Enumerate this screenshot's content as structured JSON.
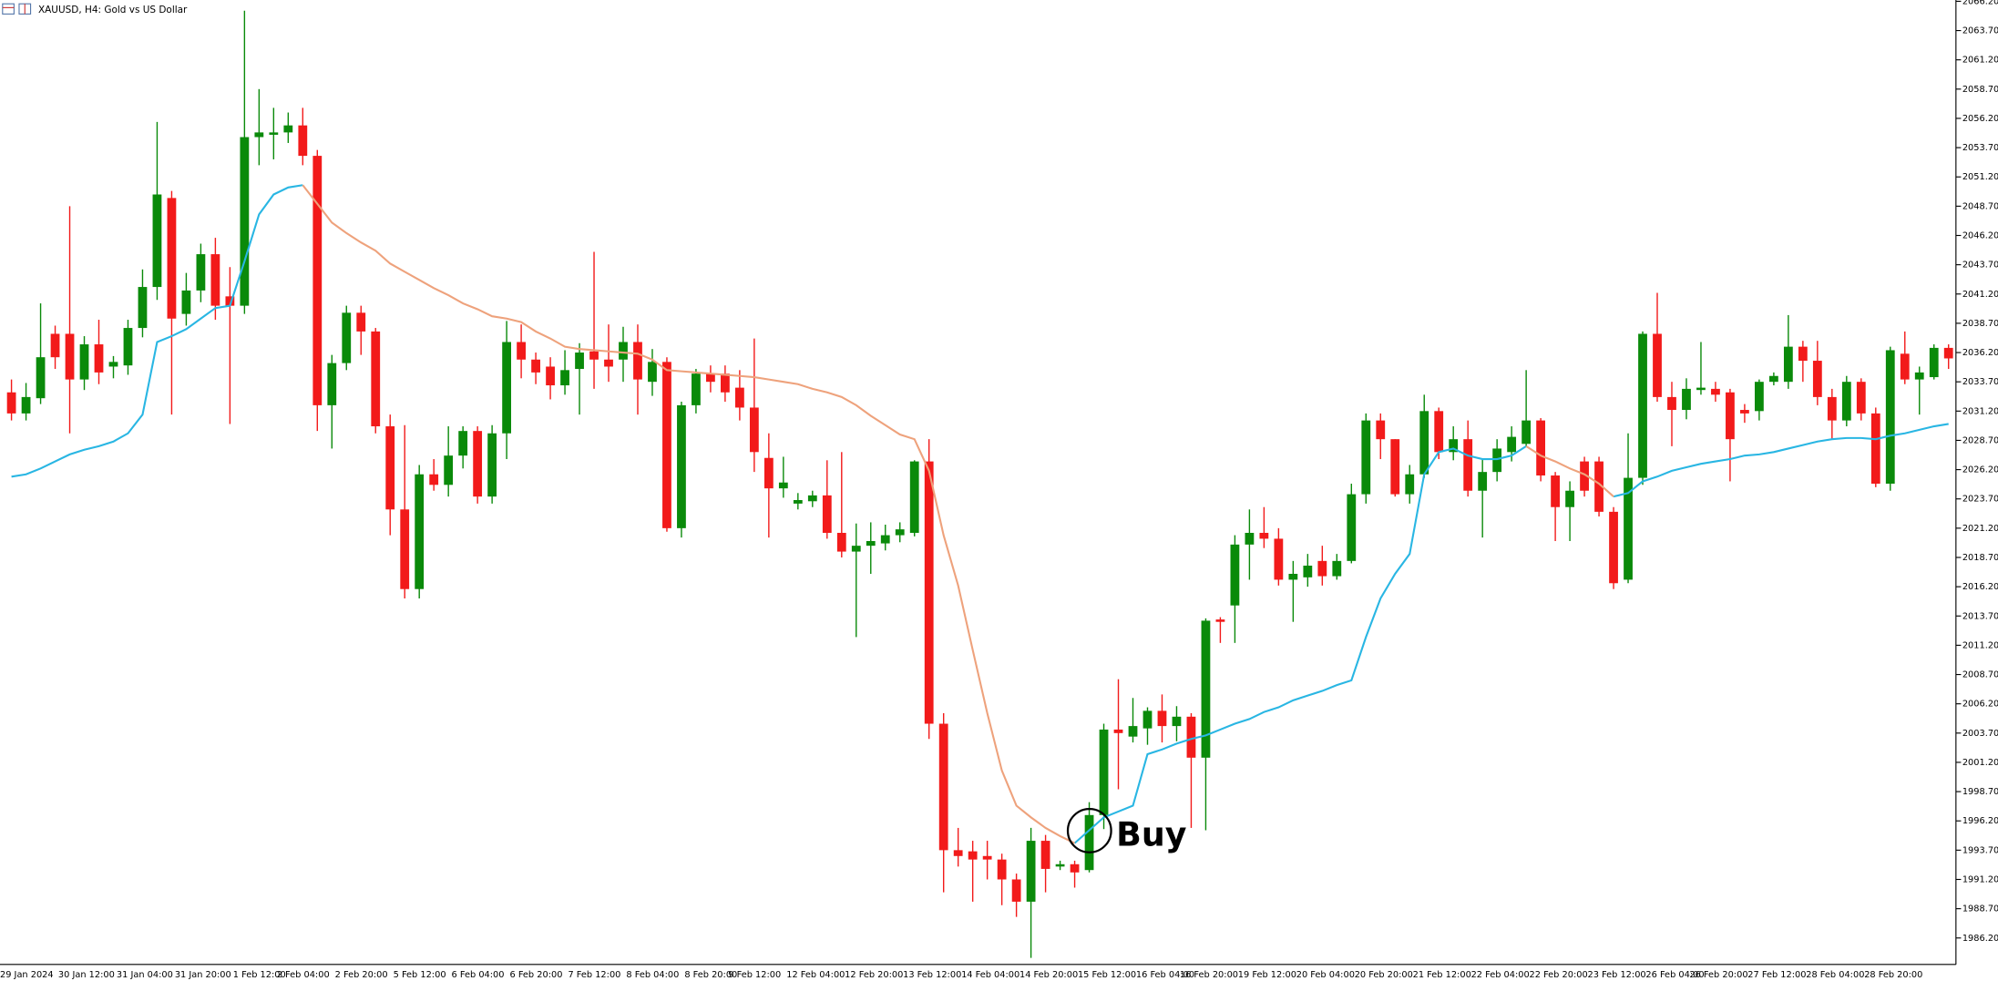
{
  "chart_data": {
    "type": "candlestick",
    "title": "XAUUSD, H4:  Gold vs US Dollar",
    "annotation": "Buy",
    "up_color": "#0a8a0a",
    "down_color": "#f21a1a",
    "categories": [
      "29 Jan 2024",
      null,
      null,
      null,
      "30 Jan 12:00",
      null,
      null,
      null,
      "31 Jan 04:00",
      null,
      null,
      null,
      "31 Jan 20:00",
      null,
      null,
      null,
      "1 Feb 12:00",
      null,
      null,
      "2 Feb 04:00",
      null,
      null,
      null,
      "2 Feb 20:00",
      null,
      null,
      null,
      "5 Feb 12:00",
      null,
      null,
      null,
      "6 Feb 04:00",
      null,
      null,
      null,
      "6 Feb 20:00",
      null,
      null,
      null,
      "7 Feb 12:00",
      null,
      null,
      null,
      "8 Feb 04:00",
      null,
      null,
      null,
      "8 Feb 20:00",
      null,
      null,
      "9 Feb 12:00",
      null,
      null,
      null,
      "12 Feb 04:00",
      null,
      null,
      null,
      "12 Feb 20:00",
      null,
      null,
      null,
      "13 Feb 12:00",
      null,
      null,
      null,
      "14 Feb 04:00",
      null,
      null,
      null,
      "14 Feb 20:00",
      null,
      null,
      null,
      "15 Feb 12:00",
      null,
      null,
      null,
      "16 Feb 04:00",
      null,
      null,
      "16 Feb 20:00",
      null,
      null,
      null,
      "19 Feb 12:00",
      null,
      null,
      null,
      "20 Feb 04:00",
      null,
      null,
      null,
      "20 Feb 20:00",
      null,
      null,
      null,
      "21 Feb 12:00",
      null,
      null,
      null,
      "22 Feb 04:00",
      null,
      null,
      null,
      "22 Feb 20:00",
      null,
      null,
      null,
      "23 Feb 12:00",
      null,
      null,
      null,
      "26 Feb 04:00",
      null,
      null,
      "26 Feb 20:00",
      null,
      null,
      null,
      "27 Feb 12:00",
      null,
      null,
      null,
      "28 Feb 04:00",
      null,
      null,
      null,
      "28 Feb 20:00",
      null,
      null,
      null,
      null,
      null
    ],
    "open": [
      2032.8,
      2031.0,
      2032.3,
      2037.8,
      2037.8,
      2033.9,
      2036.9,
      2035.0,
      2035.1,
      2038.3,
      2041.8,
      2049.4,
      2039.5,
      2041.5,
      2044.6,
      2041.0,
      2040.2,
      2054.6,
      2054.8,
      2055.0,
      2055.6,
      2053.0,
      2031.7,
      2035.3,
      2039.6,
      2038.0,
      2029.9,
      2022.8,
      2016.0,
      2025.8,
      2024.9,
      2027.4,
      2029.5,
      2023.9,
      2029.3,
      2037.1,
      2035.6,
      2035.0,
      2033.4,
      2034.8,
      2036.3,
      2035.6,
      2035.6,
      2037.1,
      2033.7,
      2035.4,
      2021.2,
      2031.7,
      2034.4,
      2034.4,
      2033.2,
      2031.5,
      2027.2,
      2024.6,
      2023.3,
      2023.5,
      2024.0,
      2020.8,
      2019.2,
      2019.7,
      2019.9,
      2020.6,
      2020.8,
      2026.9,
      2004.5,
      1993.7,
      1993.6,
      1993.2,
      1992.9,
      1991.2,
      1989.3,
      1994.5,
      1992.3,
      1992.5,
      1992.0,
      1996.7,
      2004.0,
      2003.4,
      2004.1,
      2005.6,
      2004.3,
      2005.1,
      2001.6,
      2013.4,
      2014.6,
      2019.8,
      2020.8,
      2020.3,
      2016.8,
      2017.0,
      2018.4,
      2017.1,
      2018.4,
      2024.1,
      2030.4,
      2028.8,
      2024.1,
      2025.8,
      2031.2,
      2027.7,
      2028.8,
      2024.4,
      2026.0,
      2027.7,
      2028.4,
      2030.4,
      2025.7,
      2023.0,
      2026.9,
      2026.9,
      2022.6,
      2016.8,
      2025.5,
      2037.8,
      2032.4,
      2031.3,
      2033.0,
      2033.1,
      2032.8,
      2031.3,
      2031.2,
      2033.7,
      2033.7,
      2036.7,
      2035.5,
      2032.4,
      2030.4,
      2033.7,
      2031.0,
      2025.0,
      2036.1,
      2033.9,
      2034.1,
      2036.6
    ],
    "high": [
      2033.9,
      2033.6,
      2040.4,
      2038.5,
      2048.7,
      2037.6,
      2039.0,
      2035.9,
      2039.0,
      2043.3,
      2055.9,
      2050.0,
      2043.0,
      2045.5,
      2046.0,
      2043.5,
      2065.4,
      2058.7,
      2057.1,
      2056.7,
      2057.1,
      2053.5,
      2036.0,
      2040.2,
      2040.2,
      2038.3,
      2030.9,
      2030.0,
      2026.6,
      2027.1,
      2029.9,
      2029.9,
      2029.9,
      2030.0,
      2038.9,
      2038.6,
      2036.2,
      2035.8,
      2036.4,
      2037.0,
      2044.8,
      2038.6,
      2038.4,
      2038.6,
      2036.5,
      2035.8,
      2032.0,
      2034.8,
      2035.1,
      2035.1,
      2034.7,
      2037.4,
      2029.3,
      2027.3,
      2024.2,
      2024.4,
      2027.0,
      2027.7,
      2021.6,
      2021.7,
      2021.5,
      2021.7,
      2027.0,
      2028.8,
      2005.4,
      1995.6,
      1994.5,
      1994.5,
      1993.4,
      1991.7,
      1995.6,
      1995.0,
      1992.8,
      1992.8,
      1997.8,
      2004.5,
      2008.3,
      2006.7,
      2005.9,
      2007.0,
      2006.0,
      2005.4,
      2013.5,
      2013.6,
      2020.6,
      2022.8,
      2023.0,
      2021.2,
      2018.4,
      2019.0,
      2019.7,
      2019.0,
      2025.0,
      2031.0,
      2031.0,
      2028.8,
      2026.6,
      2032.6,
      2031.5,
      2029.9,
      2030.4,
      2027.1,
      2028.8,
      2029.9,
      2034.7,
      2030.6,
      2026.0,
      2025.2,
      2027.3,
      2027.3,
      2023.0,
      2029.3,
      2038.0,
      2041.3,
      2033.7,
      2034.0,
      2037.1,
      2033.7,
      2033.1,
      2031.8,
      2033.9,
      2034.5,
      2039.4,
      2037.2,
      2037.2,
      2033.1,
      2034.2,
      2034.0,
      2031.5,
      2036.7,
      2038.0,
      2035.0,
      2036.9,
      2036.9
    ],
    "low": [
      2030.4,
      2030.4,
      2031.8,
      2034.8,
      2029.3,
      2033.0,
      2033.5,
      2034.0,
      2034.3,
      2037.5,
      2040.7,
      2030.9,
      2038.5,
      2040.5,
      2039.0,
      2030.1,
      2039.5,
      2052.2,
      2052.7,
      2054.1,
      2052.2,
      2029.5,
      2028.0,
      2034.7,
      2036.0,
      2029.3,
      2020.6,
      2015.2,
      2015.2,
      2024.4,
      2023.9,
      2026.3,
      2023.3,
      2023.3,
      2027.1,
      2034.0,
      2033.5,
      2032.2,
      2032.6,
      2030.9,
      2033.1,
      2033.7,
      2033.7,
      2030.9,
      2032.5,
      2020.9,
      2020.4,
      2031.0,
      2032.8,
      2032.0,
      2030.4,
      2026.0,
      2020.4,
      2023.8,
      2022.8,
      2023.0,
      2020.3,
      2018.7,
      2011.9,
      2017.3,
      2019.3,
      2020.0,
      2020.5,
      2003.2,
      1990.1,
      1992.3,
      1989.3,
      1991.2,
      1989.0,
      1988.0,
      1984.5,
      1990.1,
      1992.0,
      1990.5,
      1991.8,
      1995.5,
      1998.9,
      2002.9,
      2002.7,
      2002.9,
      2003.0,
      1995.6,
      1995.4,
      2011.4,
      2011.4,
      2016.8,
      2019.5,
      2016.3,
      2013.2,
      2016.2,
      2016.3,
      2016.8,
      2018.2,
      2023.3,
      2027.1,
      2023.9,
      2023.3,
      2025.5,
      2027.1,
      2027.0,
      2023.9,
      2020.4,
      2025.2,
      2026.9,
      2028.2,
      2025.2,
      2020.1,
      2020.1,
      2023.9,
      2022.2,
      2016.0,
      2016.5,
      2024.9,
      2032.0,
      2028.2,
      2030.5,
      2032.6,
      2032.0,
      2025.2,
      2030.2,
      2030.4,
      2033.4,
      2033.1,
      2033.7,
      2031.7,
      2028.8,
      2029.9,
      2030.4,
      2024.7,
      2024.4,
      2033.5,
      2030.9,
      2033.9,
      2034.8
    ],
    "close": [
      2031.0,
      2032.4,
      2035.8,
      2035.8,
      2033.9,
      2036.9,
      2034.5,
      2035.4,
      2038.3,
      2041.8,
      2049.7,
      2039.1,
      2041.5,
      2044.6,
      2040.2,
      2040.2,
      2054.6,
      2055.0,
      2055.0,
      2055.6,
      2053.0,
      2031.7,
      2035.3,
      2039.6,
      2038.0,
      2029.9,
      2022.8,
      2016.0,
      2025.8,
      2024.9,
      2027.4,
      2029.5,
      2023.9,
      2029.3,
      2037.1,
      2035.6,
      2034.5,
      2033.4,
      2034.7,
      2036.2,
      2035.6,
      2035.0,
      2037.1,
      2033.9,
      2035.4,
      2021.2,
      2031.7,
      2034.4,
      2033.7,
      2032.8,
      2031.5,
      2027.7,
      2024.6,
      2025.1,
      2023.6,
      2024.0,
      2020.8,
      2019.2,
      2019.7,
      2020.1,
      2020.6,
      2021.1,
      2026.9,
      2004.5,
      1993.7,
      1993.2,
      1992.9,
      1992.9,
      1991.2,
      1989.3,
      1994.5,
      1992.1,
      1992.5,
      1991.8,
      1996.7,
      2004.0,
      2003.7,
      2004.3,
      2005.6,
      2004.3,
      2005.1,
      2001.6,
      2013.3,
      2013.2,
      2019.8,
      2020.8,
      2020.3,
      2016.8,
      2017.3,
      2018.0,
      2017.1,
      2018.4,
      2024.1,
      2030.4,
      2028.8,
      2024.1,
      2025.8,
      2031.2,
      2027.7,
      2028.8,
      2024.4,
      2026.0,
      2028.0,
      2029.0,
      2030.4,
      2025.7,
      2023.0,
      2024.4,
      2024.4,
      2022.6,
      2016.5,
      2025.5,
      2037.8,
      2032.4,
      2031.3,
      2033.1,
      2033.2,
      2032.6,
      2028.8,
      2031.0,
      2033.7,
      2034.2,
      2036.7,
      2035.5,
      2032.4,
      2030.4,
      2033.7,
      2031.0,
      2025.0,
      2036.4,
      2033.9,
      2034.5,
      2036.6,
      2035.7
    ],
    "series": [
      {
        "color": "#29b6e3",
        "values": [
          2025.6,
          2025.8,
          2026.3,
          2026.9,
          2027.5,
          2027.9,
          2028.2,
          2028.6,
          2029.3,
          2030.9,
          2037.1,
          2037.6,
          2038.2,
          2039.1,
          2040.0,
          2040.2,
          2044.0,
          2048.0,
          2049.7,
          2050.3,
          2050.5,
          null,
          null,
          null,
          null,
          null,
          null,
          null,
          null,
          null,
          null,
          null,
          null,
          null,
          null,
          null,
          null,
          null,
          null,
          null,
          null,
          null,
          null,
          null,
          null,
          null,
          null,
          null,
          null,
          null,
          null,
          null,
          null,
          null,
          null,
          null,
          null,
          null,
          null,
          null,
          null,
          null,
          null,
          null,
          null,
          null,
          null,
          null,
          null,
          null,
          null,
          null,
          null,
          1994.3,
          1995.4,
          1996.5,
          1997.0,
          1997.5,
          2001.9,
          2002.3,
          2002.8,
          2003.2,
          2003.5,
          2004.0,
          2004.5,
          2004.9,
          2005.5,
          2005.9,
          2006.5,
          2006.9,
          2007.3,
          2007.8,
          2008.2,
          2011.9,
          2015.2,
          2017.3,
          2019.0,
          2025.8,
          2027.7,
          2028.0,
          2027.4,
          2027.1,
          2027.1,
          2027.4,
          2028.2,
          null,
          null,
          null,
          null,
          null,
          2023.9,
          2024.2,
          2025.2,
          2025.6,
          2026.1,
          2026.4,
          2026.7,
          2026.9,
          2027.1,
          2027.4,
          2027.5,
          2027.7,
          2028.0,
          2028.3,
          2028.6,
          2028.8,
          2028.9,
          2028.9,
          2028.8,
          2029.1,
          2029.3,
          2029.6,
          2029.9,
          2030.1
        ]
      },
      {
        "color": "#eea27c",
        "values": [
          null,
          null,
          null,
          null,
          null,
          null,
          null,
          null,
          null,
          null,
          null,
          null,
          null,
          null,
          null,
          null,
          null,
          null,
          null,
          null,
          2050.5,
          2048.9,
          2047.3,
          2046.4,
          2045.6,
          2044.9,
          2043.8,
          2043.1,
          2042.4,
          2041.7,
          2041.1,
          2040.4,
          2039.9,
          2039.3,
          2039.1,
          2038.8,
          2038.0,
          2037.4,
          2036.7,
          2036.5,
          2036.4,
          2036.3,
          2036.2,
          2036.1,
          2035.6,
          2034.7,
          2034.6,
          2034.5,
          2034.4,
          2034.3,
          2034.2,
          2034.1,
          2033.9,
          2033.7,
          2033.5,
          2033.1,
          2032.8,
          2032.4,
          2031.7,
          2030.8,
          2030.0,
          2029.2,
          2028.8,
          2026.1,
          2020.6,
          2016.3,
          2010.8,
          2005.4,
          2000.5,
          1997.5,
          1996.5,
          1995.6,
          1994.9,
          1994.3,
          null,
          null,
          null,
          null,
          null,
          null,
          null,
          null,
          null,
          null,
          null,
          null,
          null,
          null,
          null,
          null,
          null,
          null,
          null,
          null,
          null,
          null,
          null,
          null,
          null,
          null,
          null,
          null,
          null,
          null,
          2028.2,
          2027.4,
          2026.9,
          2026.3,
          2025.8,
          2025.0,
          2023.9,
          null,
          null,
          null,
          null,
          null,
          null,
          null,
          null,
          null,
          null,
          null,
          null,
          null,
          null,
          null,
          null,
          null,
          null,
          null,
          null,
          null,
          null,
          null
        ]
      }
    ],
    "ylim": [
      1983.94,
      2066.31
    ],
    "yticks": [
      {
        "value": 1986.2,
        "label": "1986.20"
      },
      {
        "value": 1988.7,
        "label": "1988.70"
      },
      {
        "value": 1991.2,
        "label": "1991.20"
      },
      {
        "value": 1993.7,
        "label": "1993.70"
      },
      {
        "value": 1996.2,
        "label": "1996.20"
      },
      {
        "value": 1998.7,
        "label": "1998.70"
      },
      {
        "value": 2001.2,
        "label": "2001.20"
      },
      {
        "value": 2003.7,
        "label": "2003.70"
      },
      {
        "value": 2006.2,
        "label": "2006.20"
      },
      {
        "value": 2008.7,
        "label": "2008.70"
      },
      {
        "value": 2011.2,
        "label": "2011.20"
      },
      {
        "value": 2013.7,
        "label": "2013.70"
      },
      {
        "value": 2016.2,
        "label": "2016.20"
      },
      {
        "value": 2018.7,
        "label": "2018.70"
      },
      {
        "value": 2021.2,
        "label": "2021.20"
      },
      {
        "value": 2023.7,
        "label": "2023.70"
      },
      {
        "value": 2026.2,
        "label": "2026.20"
      },
      {
        "value": 2028.7,
        "label": "2028.70"
      },
      {
        "value": 2031.2,
        "label": "2031.20"
      },
      {
        "value": 2033.7,
        "label": "2033.70"
      },
      {
        "value": 2036.2,
        "label": "2036.20"
      },
      {
        "value": 2038.7,
        "label": "2038.70"
      },
      {
        "value": 2041.2,
        "label": "2041.20"
      },
      {
        "value": 2043.7,
        "label": "2043.70"
      },
      {
        "value": 2046.2,
        "label": "2046.20"
      },
      {
        "value": 2048.7,
        "label": "2048.70"
      },
      {
        "value": 2051.2,
        "label": "2051.20"
      },
      {
        "value": 2053.7,
        "label": "2053.70"
      },
      {
        "value": 2056.2,
        "label": "2056.20"
      },
      {
        "value": 2058.7,
        "label": "2058.70"
      },
      {
        "value": 2061.2,
        "label": "2061.20"
      },
      {
        "value": 2063.7,
        "label": "2063.70"
      },
      {
        "value": 2066.2,
        "label": "2066.20"
      }
    ],
    "grid": false
  }
}
